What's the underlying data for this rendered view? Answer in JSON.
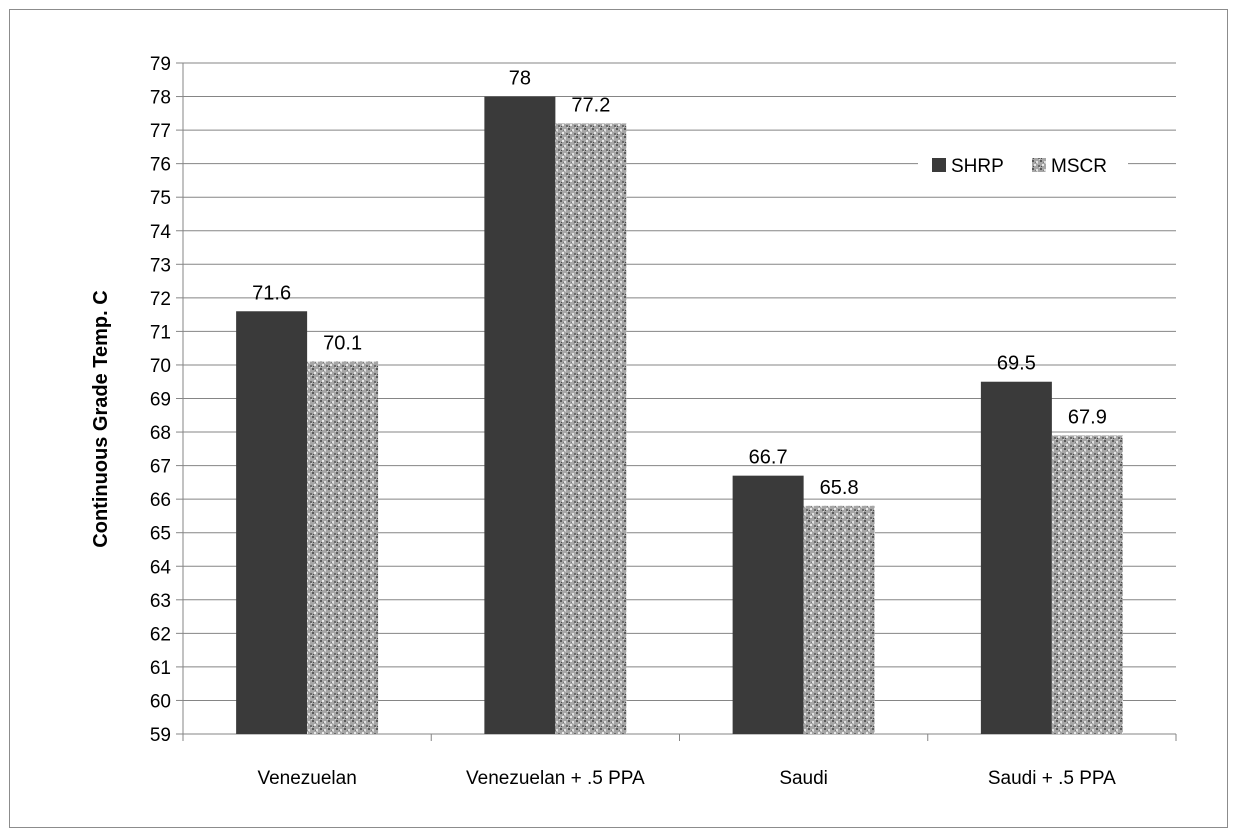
{
  "chart_data": {
    "type": "bar",
    "categories": [
      "Venezuelan",
      "Venezuelan + .5 PPA",
      "Saudi",
      "Saudi + .5 PPA"
    ],
    "series": [
      {
        "name": "SHRP",
        "values": [
          71.6,
          78,
          66.7,
          69.5
        ],
        "labels": [
          "71.6",
          "78",
          "66.7",
          "69.5"
        ]
      },
      {
        "name": "MSCR",
        "values": [
          70.1,
          77.2,
          65.8,
          67.9
        ],
        "labels": [
          "70.1",
          "77.2",
          "65.8",
          "67.9"
        ]
      }
    ],
    "title": "",
    "xlabel": "",
    "ylabel": "Continuous Grade Temp. C",
    "ylim": [
      59,
      79
    ],
    "yticks": [
      "59",
      "60",
      "61",
      "62",
      "63",
      "64",
      "65",
      "66",
      "67",
      "68",
      "69",
      "70",
      "71",
      "72",
      "73",
      "74",
      "75",
      "76",
      "77",
      "78",
      "79"
    ],
    "grid": true,
    "legend_position": "top-right",
    "colors": {
      "SHRP": "#3a3a3a",
      "MSCR": "#9a9a9a",
      "grid": "#858585",
      "frame": "#8c8c8c"
    },
    "series_style": {
      "SHRP": "solid",
      "MSCR": "speckled"
    }
  }
}
